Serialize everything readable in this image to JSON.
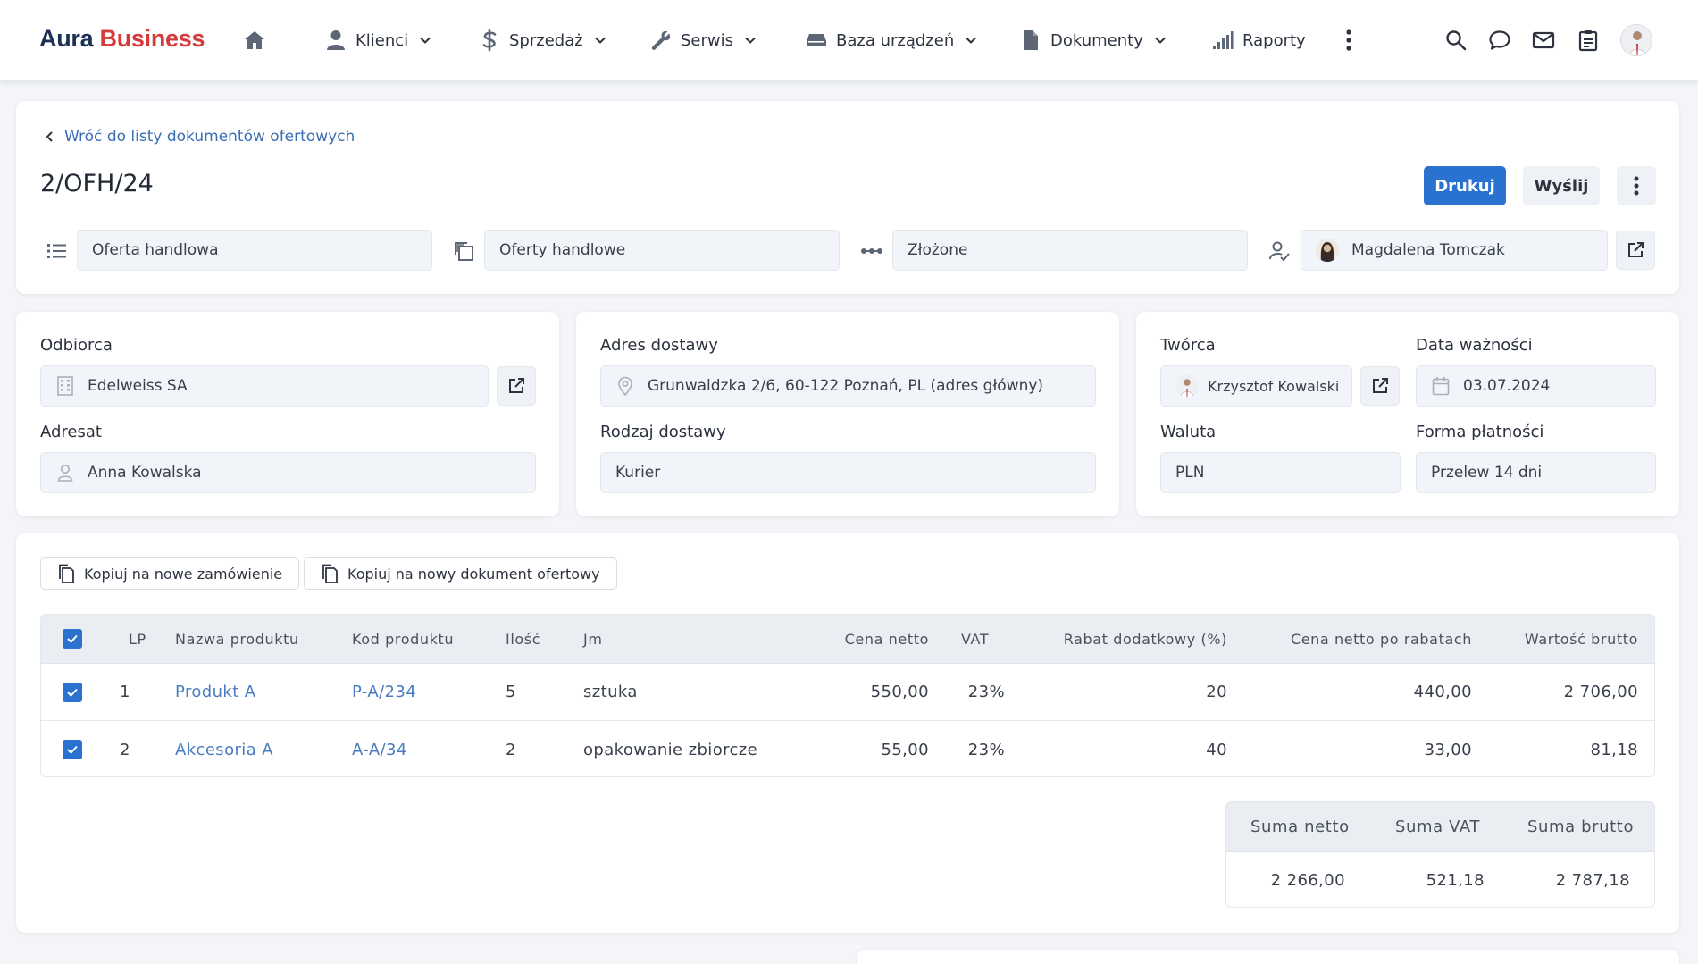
{
  "app": {
    "logo_part1": "Aura",
    "logo_part2": "Business",
    "brand_color": "#1d3156",
    "accent_color": "#d63b3b"
  },
  "nav": {
    "items": [
      {
        "label": "Klienci",
        "icon": "user-icon",
        "dropdown": true
      },
      {
        "label": "Sprzedaż",
        "icon": "dollar-icon",
        "dropdown": true
      },
      {
        "label": "Serwis",
        "icon": "wrench-icon",
        "dropdown": true
      },
      {
        "label": "Baza urządzeń",
        "icon": "device-icon",
        "dropdown": true
      },
      {
        "label": "Dokumenty",
        "icon": "document-icon",
        "dropdown": true
      },
      {
        "label": "Raporty",
        "icon": "signal-chart-icon",
        "dropdown": false
      }
    ],
    "right_icons": [
      "search-icon",
      "chat-icon",
      "mail-icon",
      "clipboard-icon"
    ]
  },
  "header": {
    "back_link": "Wróć do listy dokumentów ofertowych",
    "doc_number": "2/OFH/24",
    "print_label": "Drukuj",
    "send_label": "Wyślij",
    "primary_color": "#2a72d0"
  },
  "meta": {
    "type": "Oferta handlowa",
    "category": "Oferty handlowe",
    "status": "Złożone",
    "assignee": "Magdalena Tomczak"
  },
  "details": {
    "recipient_label": "Odbiorca",
    "recipient": "Edelweiss SA",
    "addressee_label": "Adresat",
    "addressee": "Anna Kowalska",
    "delivery_address_label": "Adres dostawy",
    "delivery_address": "Grunwaldzka 2/6, 60-122 Poznań, PL (adres główny)",
    "delivery_type_label": "Rodzaj dostawy",
    "delivery_type": "Kurier",
    "creator_label": "Twórca",
    "creator": "Krzysztof Kowalski",
    "valid_until_label": "Data ważności",
    "valid_until": "03.07.2024",
    "currency_label": "Waluta",
    "currency": "PLN",
    "payment_label": "Forma płatności",
    "payment": "Przelew 14 dni"
  },
  "actions": {
    "copy_order": "Kopiuj na nowe zamówienie",
    "copy_offer": "Kopiuj na nowy dokument ofertowy"
  },
  "table": {
    "columns": {
      "lp": "LP",
      "name": "Nazwa produktu",
      "code": "Kod produktu",
      "qty": "Ilość",
      "unit": "Jm",
      "net_price": "Cena netto",
      "vat": "VAT",
      "discount": "Rabat dodatkowy (%)",
      "net_after": "Cena netto po rabatach",
      "gross": "Wartość brutto"
    },
    "rows": [
      {
        "lp": "1",
        "name": "Produkt A",
        "code": "P-A/234",
        "qty": "5",
        "unit": "sztuka",
        "net_price": "550,00",
        "vat": "23%",
        "discount": "20",
        "net_after": "440,00",
        "gross": "2 706,00",
        "checked": true
      },
      {
        "lp": "2",
        "name": "Akcesoria A",
        "code": "A-A/34",
        "qty": "2",
        "unit": "opakowanie zbiorcze",
        "net_price": "55,00",
        "vat": "23%",
        "discount": "40",
        "net_after": "33,00",
        "gross": "81,18",
        "checked": true
      }
    ]
  },
  "summary": {
    "net_label": "Suma netto",
    "vat_label": "Suma VAT",
    "gross_label": "Suma brutto",
    "net": "2 266,00",
    "vat": "521,18",
    "gross": "2 787,18"
  }
}
